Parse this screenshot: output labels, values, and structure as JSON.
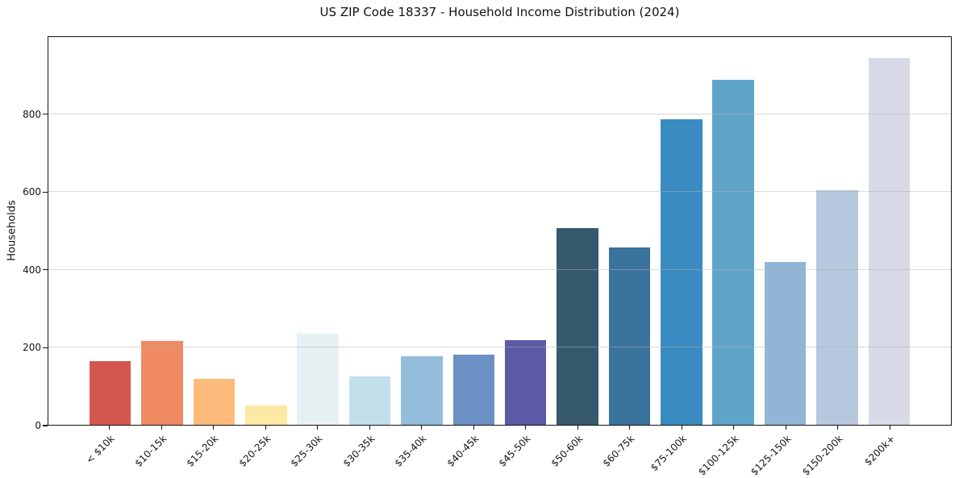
{
  "chart_data": {
    "type": "bar",
    "title": "US ZIP Code 18337 - Household Income Distribution (2024)",
    "xlabel": "",
    "ylabel": "Households",
    "categories": [
      "< $10k",
      "$10-15k",
      "$15-20k",
      "$20-25k",
      "$25-30k",
      "$30-35k",
      "$35-40k",
      "$40-45k",
      "$45-50k",
      "$50-60k",
      "$60-75k",
      "$75-100k",
      "$100-125k",
      "$125-150k",
      "$150-200k",
      "$200k+"
    ],
    "values": [
      165,
      217,
      119,
      49,
      235,
      124,
      177,
      181,
      218,
      507,
      457,
      787,
      889,
      420,
      604,
      947
    ],
    "bar_colors": [
      "#d4574e",
      "#f08a62",
      "#fcbb7b",
      "#fde9a3",
      "#e6f1f4",
      "#c1e0eb",
      "#93bddb",
      "#6b90c4",
      "#5c5aa7",
      "#36596e",
      "#3a739c",
      "#398bc1",
      "#5fa5ca",
      "#92b4d5",
      "#b6c8de",
      "#d8dae8"
    ],
    "yticks": [
      0,
      200,
      400,
      600,
      800
    ],
    "ylim": [
      0,
      1000
    ],
    "grid": "horizontal",
    "gridline_color": "#dcdcdc",
    "legend": "none",
    "x_tick_rotation_deg": 45,
    "background_color": "#ffffff",
    "spine_color": "#141414"
  }
}
